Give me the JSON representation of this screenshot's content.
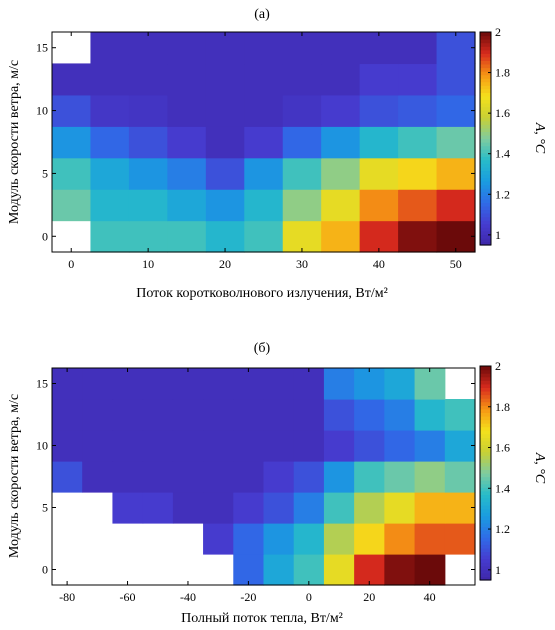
{
  "chart_data": [
    {
      "type": "heatmap",
      "title": "(а)",
      "xlabel": "Поток коротковолнового излучения, Вт/м²",
      "ylabel": "Модуль скорости ветра, м/с",
      "colorbar_label": "A, °C",
      "colormap": "parula-like (blue → cyan → yellow → dark red)",
      "clim": [
        0.95,
        2.0
      ],
      "x_centers": [
        0,
        5,
        10,
        15,
        20,
        25,
        30,
        35,
        40,
        45,
        50
      ],
      "xlim": [
        -2.5,
        52.5
      ],
      "x_ticks": [
        "0",
        "10",
        "20",
        "30",
        "40",
        "50"
      ],
      "y_centers": [
        0,
        2.5,
        5,
        7.5,
        10,
        12.5,
        15
      ],
      "ylim": [
        -1.25,
        16.25
      ],
      "y_ticks": [
        "0",
        "5",
        "10",
        "15"
      ],
      "colorbar_ticks": [
        "1",
        "1.2",
        "1.4",
        "1.6",
        "1.8",
        "2"
      ],
      "values": [
        [
          null,
          1.4,
          1.4,
          1.4,
          1.35,
          1.4,
          1.65,
          1.75,
          1.9,
          1.98,
          2.0
        ],
        [
          1.45,
          1.35,
          1.35,
          1.3,
          1.25,
          1.35,
          1.5,
          1.65,
          1.8,
          1.85,
          1.9
        ],
        [
          1.4,
          1.3,
          1.25,
          1.2,
          1.1,
          1.25,
          1.4,
          1.5,
          1.65,
          1.7,
          1.75
        ],
        [
          1.25,
          1.15,
          1.1,
          1.05,
          1.0,
          1.05,
          1.15,
          1.25,
          1.35,
          1.4,
          1.45
        ],
        [
          1.1,
          1.03,
          1.02,
          1.0,
          1.0,
          1.0,
          1.02,
          1.05,
          1.1,
          1.12,
          1.15
        ],
        [
          1.0,
          1.0,
          1.0,
          1.0,
          1.0,
          1.0,
          1.0,
          1.0,
          1.05,
          1.05,
          1.1
        ],
        [
          null,
          1.0,
          1.0,
          1.0,
          1.0,
          1.0,
          1.0,
          1.0,
          1.0,
          1.0,
          1.1
        ]
      ]
    },
    {
      "type": "heatmap",
      "title": "(б)",
      "xlabel": "Полный поток тепла, Вт/м²",
      "ylabel": "Модуль скорости ветра, м/с",
      "colorbar_label": "A, °C",
      "colormap": "parula-like (blue → cyan → yellow → dark red)",
      "clim": [
        0.95,
        2.0
      ],
      "x_centers": [
        -80,
        -70,
        -60,
        -50,
        -40,
        -30,
        -20,
        -10,
        0,
        10,
        20,
        30,
        40,
        50
      ],
      "xlim": [
        -85,
        55
      ],
      "x_ticks": [
        "-80",
        "-60",
        "-40",
        "-20",
        "0",
        "20",
        "40"
      ],
      "y_centers": [
        0,
        2.5,
        5,
        7.5,
        10,
        12.5,
        15
      ],
      "ylim": [
        -1.25,
        16.25
      ],
      "y_ticks": [
        "0",
        "5",
        "10",
        "15"
      ],
      "colorbar_ticks": [
        "1",
        "1.2",
        "1.4",
        "1.6",
        "1.8",
        "2"
      ],
      "values": [
        [
          null,
          null,
          null,
          null,
          null,
          null,
          1.15,
          1.3,
          1.4,
          1.65,
          1.9,
          1.98,
          2.0,
          null
        ],
        [
          null,
          null,
          null,
          null,
          null,
          1.05,
          1.15,
          1.25,
          1.35,
          1.55,
          1.7,
          1.8,
          1.85,
          1.85
        ],
        [
          null,
          null,
          1.05,
          1.05,
          1.0,
          1.0,
          1.05,
          1.1,
          1.2,
          1.4,
          1.55,
          1.65,
          1.75,
          1.75
        ],
        [
          1.1,
          1.0,
          1.0,
          1.0,
          1.0,
          1.0,
          1.0,
          1.05,
          1.1,
          1.25,
          1.4,
          1.45,
          1.5,
          1.45
        ],
        [
          1.0,
          1.0,
          1.0,
          1.0,
          1.0,
          1.0,
          1.0,
          1.0,
          1.0,
          1.05,
          1.1,
          1.15,
          1.2,
          1.3
        ],
        [
          1.0,
          1.0,
          1.0,
          1.0,
          1.0,
          1.0,
          1.0,
          1.0,
          1.0,
          1.1,
          1.15,
          1.2,
          1.35,
          1.4
        ],
        [
          1.0,
          1.0,
          1.0,
          1.0,
          1.0,
          1.0,
          1.0,
          1.0,
          1.0,
          1.2,
          1.25,
          1.3,
          1.45,
          null
        ]
      ]
    }
  ]
}
